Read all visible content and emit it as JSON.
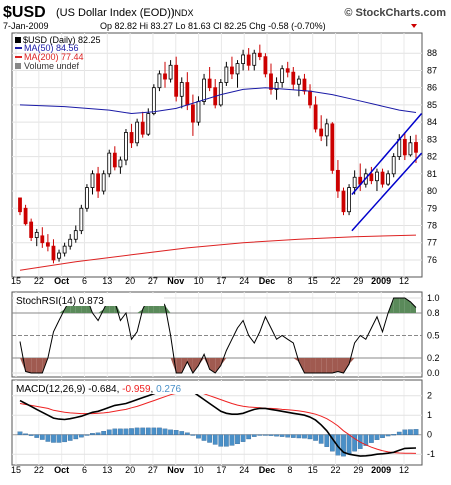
{
  "header": {
    "symbol": "$USD",
    "name": "(US Dollar Index (EOD))",
    "exchange": "INDX",
    "date": "7-Jan-2009",
    "quote": "Op 82.82 Hi 83.27 Lo 81.63 Cl 82.25 Chg -0.58 (-0.70%)",
    "brand": "© StockCharts.com"
  },
  "legend": {
    "price": "$USD (Daily) 82.25",
    "ma50": "MA(50) 84.56",
    "ma200": "MA(200) 77.44",
    "volume": "Volume undef"
  },
  "colors": {
    "candle": "#000000",
    "down_candle": "#cc0000",
    "ma50": "#1a1aa6",
    "ma200": "#dd2222",
    "trend": "#0000cc",
    "macd_line": "#000000",
    "signal": "#ee2222",
    "histogram": "#4a90c8",
    "stoch": "#000000",
    "overbought_fill": "#5a8a5a",
    "oversold_fill": "#a05a50"
  },
  "x_axis": {
    "labels": [
      "15",
      "22",
      "Oct",
      "6",
      "13",
      "20",
      "27",
      "Nov",
      "10",
      "17",
      "24",
      "Dec",
      "8",
      "15",
      "22",
      "29",
      "2009",
      "12"
    ],
    "bold": [
      "Oct",
      "Nov",
      "Dec",
      "2009"
    ]
  },
  "chart_data": [
    {
      "type": "candlestick",
      "title": "$USD (Daily) 82.25",
      "ylim": [
        75.3,
        89
      ],
      "y_ticks": [
        76,
        77,
        78,
        79,
        80,
        81,
        82,
        83,
        84,
        85,
        86,
        87,
        88
      ],
      "grid": true,
      "ohlc": [
        [
          79.6,
          79.6,
          78.6,
          78.8
        ],
        [
          79.0,
          79.2,
          78.0,
          78.1
        ],
        [
          78.2,
          78.4,
          77.1,
          77.3
        ],
        [
          77.3,
          77.8,
          76.8,
          77.6
        ],
        [
          77.4,
          77.9,
          76.7,
          77.0
        ],
        [
          77.0,
          77.5,
          76.5,
          76.8
        ],
        [
          76.8,
          77.2,
          75.8,
          76.0
        ],
        [
          76.1,
          76.6,
          75.9,
          76.4
        ],
        [
          76.4,
          77.0,
          76.2,
          76.8
        ],
        [
          76.8,
          77.5,
          76.6,
          77.2
        ],
        [
          77.2,
          78.0,
          77.0,
          77.7
        ],
        [
          77.7,
          79.2,
          77.5,
          79.0
        ],
        [
          79.0,
          80.4,
          78.8,
          80.2
        ],
        [
          80.2,
          81.2,
          79.8,
          81.0
        ],
        [
          81.0,
          81.4,
          79.6,
          80.0
        ],
        [
          80.0,
          81.2,
          79.8,
          81.0
        ],
        [
          81.0,
          82.4,
          80.8,
          82.2
        ],
        [
          82.2,
          82.6,
          81.2,
          81.4
        ],
        [
          81.4,
          82.0,
          81.0,
          81.8
        ],
        [
          81.8,
          83.6,
          81.5,
          83.4
        ],
        [
          83.4,
          83.9,
          82.5,
          82.8
        ],
        [
          82.8,
          84.2,
          82.6,
          84.0
        ],
        [
          84.0,
          84.6,
          83.1,
          83.3
        ],
        [
          83.3,
          84.8,
          83.2,
          84.5
        ],
        [
          84.5,
          86.2,
          84.4,
          86.0
        ],
        [
          86.0,
          87.0,
          85.8,
          86.8
        ],
        [
          86.8,
          87.5,
          86.0,
          86.5
        ],
        [
          86.5,
          87.6,
          86.3,
          87.3
        ],
        [
          87.3,
          87.8,
          85.2,
          85.5
        ],
        [
          85.5,
          86.6,
          84.8,
          86.3
        ],
        [
          86.3,
          86.9,
          84.7,
          85.0
        ],
        [
          85.0,
          85.6,
          83.2,
          84.0
        ],
        [
          84.0,
          85.5,
          83.8,
          85.2
        ],
        [
          85.2,
          86.8,
          85.0,
          86.5
        ],
        [
          86.5,
          87.2,
          85.8,
          86.0
        ],
        [
          86.0,
          86.5,
          84.8,
          85.0
        ],
        [
          85.0,
          86.5,
          84.9,
          86.3
        ],
        [
          86.3,
          87.5,
          86.1,
          87.2
        ],
        [
          87.2,
          87.8,
          86.5,
          86.8
        ],
        [
          86.8,
          87.6,
          86.0,
          87.4
        ],
        [
          87.4,
          88.2,
          87.0,
          87.9
        ],
        [
          87.9,
          88.3,
          87.0,
          87.3
        ],
        [
          87.3,
          88.2,
          87.0,
          88.0
        ],
        [
          88.0,
          88.5,
          87.6,
          87.8
        ],
        [
          87.8,
          88.0,
          86.6,
          86.8
        ],
        [
          86.8,
          87.4,
          85.6,
          85.9
        ],
        [
          85.9,
          86.6,
          85.3,
          86.3
        ],
        [
          86.3,
          87.3,
          86.0,
          87.1
        ],
        [
          87.1,
          87.5,
          86.6,
          86.9
        ],
        [
          86.9,
          87.2,
          85.9,
          86.2
        ],
        [
          86.2,
          86.7,
          85.5,
          86.5
        ],
        [
          86.5,
          86.8,
          85.6,
          85.8
        ],
        [
          85.8,
          86.2,
          84.8,
          85.0
        ],
        [
          85.0,
          85.5,
          83.4,
          83.6
        ],
        [
          83.6,
          84.4,
          82.9,
          83.2
        ],
        [
          83.2,
          84.2,
          82.6,
          83.9
        ],
        [
          83.9,
          84.0,
          81.0,
          81.2
        ],
        [
          81.2,
          81.8,
          79.6,
          80.0
        ],
        [
          80.0,
          80.2,
          78.6,
          78.8
        ],
        [
          78.8,
          80.4,
          78.6,
          80.2
        ],
        [
          80.2,
          81.2,
          79.8,
          80.8
        ],
        [
          80.8,
          81.6,
          80.0,
          80.4
        ],
        [
          80.4,
          81.3,
          80.2,
          81.0
        ],
        [
          81.0,
          81.4,
          80.4,
          80.6
        ],
        [
          80.6,
          81.3,
          80.0,
          81.1
        ],
        [
          81.1,
          81.3,
          80.2,
          80.4
        ],
        [
          80.4,
          81.2,
          80.3,
          81.0
        ],
        [
          81.0,
          82.2,
          80.8,
          82.0
        ],
        [
          82.0,
          83.3,
          81.8,
          83.0
        ],
        [
          83.0,
          83.4,
          81.8,
          82.1
        ],
        [
          82.1,
          83.2,
          82.0,
          82.8
        ],
        [
          82.82,
          83.27,
          81.63,
          82.25
        ]
      ],
      "ma50": [
        [
          0,
          85.0
        ],
        [
          8,
          84.9
        ],
        [
          16,
          84.7
        ],
        [
          20,
          84.5
        ],
        [
          24,
          84.6
        ],
        [
          28,
          84.8
        ],
        [
          32,
          85.2
        ],
        [
          36,
          85.6
        ],
        [
          40,
          85.9
        ],
        [
          44,
          86.0
        ],
        [
          48,
          85.9
        ],
        [
          52,
          85.8
        ],
        [
          56,
          85.6
        ],
        [
          60,
          85.3
        ],
        [
          64,
          85.0
        ],
        [
          68,
          84.7
        ],
        [
          71,
          84.56
        ]
      ],
      "ma200": [
        [
          0,
          75.4
        ],
        [
          10,
          75.9
        ],
        [
          20,
          76.3
        ],
        [
          30,
          76.7
        ],
        [
          40,
          77.0
        ],
        [
          50,
          77.2
        ],
        [
          60,
          77.35
        ],
        [
          71,
          77.44
        ]
      ],
      "trendlines": [
        [
          [
            59.5,
            79.8
          ],
          [
            72,
            84.5
          ]
        ],
        [
          [
            59.5,
            77.7
          ],
          [
            72,
            82.2
          ]
        ]
      ]
    },
    {
      "type": "line",
      "title": "StochRSI(14) 0.873",
      "ylim": [
        0,
        1
      ],
      "y_ticks": [
        0.0,
        0.2,
        0.5,
        0.8,
        1.0
      ],
      "values": [
        0.42,
        0.02,
        0.0,
        0.0,
        0.0,
        0.2,
        0.55,
        0.7,
        0.85,
        0.98,
        1.0,
        1.0,
        1.0,
        0.8,
        0.7,
        0.85,
        1.0,
        0.95,
        0.7,
        0.8,
        0.45,
        0.55,
        0.85,
        1.0,
        1.0,
        1.0,
        0.9,
        0.5,
        0.0,
        0.0,
        0.15,
        0.0,
        0.1,
        0.25,
        0.05,
        0.0,
        0.1,
        0.3,
        0.45,
        0.6,
        0.7,
        0.5,
        0.4,
        0.55,
        0.75,
        0.6,
        0.45,
        0.5,
        0.45,
        0.4,
        0.15,
        0.0,
        0.0,
        0.0,
        0.0,
        0.0,
        0.0,
        0.02,
        0.0,
        0.12,
        0.4,
        0.5,
        0.45,
        0.6,
        0.75,
        0.55,
        0.8,
        1.0,
        1.0,
        1.0,
        0.95,
        0.873
      ]
    },
    {
      "type": "line",
      "title": "MACD(12,26,9) -0.684, -0.959, 0.276",
      "ylim": [
        -1.4,
        2.6
      ],
      "y_ticks": [
        -1,
        0,
        1,
        2
      ],
      "macd": [
        1.75,
        1.6,
        1.45,
        1.3,
        1.15,
        1.0,
        0.85,
        0.8,
        0.78,
        0.82,
        0.88,
        0.95,
        1.05,
        1.15,
        1.2,
        1.3,
        1.4,
        1.5,
        1.55,
        1.6,
        1.7,
        1.8,
        1.9,
        2.0,
        2.1,
        2.2,
        2.25,
        2.3,
        2.35,
        2.35,
        2.3,
        2.2,
        2.0,
        1.8,
        1.6,
        1.4,
        1.2,
        1.1,
        1.05,
        1.05,
        1.1,
        1.2,
        1.3,
        1.35,
        1.35,
        1.3,
        1.25,
        1.2,
        1.15,
        1.1,
        1.05,
        1.0,
        0.9,
        0.75,
        0.5,
        0.2,
        -0.2,
        -0.6,
        -0.9,
        -1.0,
        -1.05,
        -1.1,
        -1.08,
        -1.05,
        -1.0,
        -0.98,
        -0.95,
        -0.9,
        -0.8,
        -0.7,
        -0.69,
        -0.684
      ],
      "signal": [
        1.6,
        1.55,
        1.5,
        1.45,
        1.4,
        1.35,
        1.25,
        1.2,
        1.15,
        1.12,
        1.1,
        1.08,
        1.08,
        1.08,
        1.1,
        1.12,
        1.15,
        1.2,
        1.25,
        1.3,
        1.38,
        1.45,
        1.55,
        1.65,
        1.75,
        1.85,
        1.95,
        2.05,
        2.12,
        2.18,
        2.2,
        2.2,
        2.18,
        2.1,
        2.0,
        1.9,
        1.8,
        1.7,
        1.6,
        1.52,
        1.46,
        1.42,
        1.4,
        1.38,
        1.36,
        1.35,
        1.33,
        1.3,
        1.28,
        1.25,
        1.22,
        1.18,
        1.12,
        1.05,
        0.95,
        0.82,
        0.65,
        0.45,
        0.2,
        0.0,
        -0.2,
        -0.38,
        -0.52,
        -0.64,
        -0.74,
        -0.82,
        -0.88,
        -0.92,
        -0.94,
        -0.95,
        -0.955,
        -0.959
      ]
    }
  ]
}
